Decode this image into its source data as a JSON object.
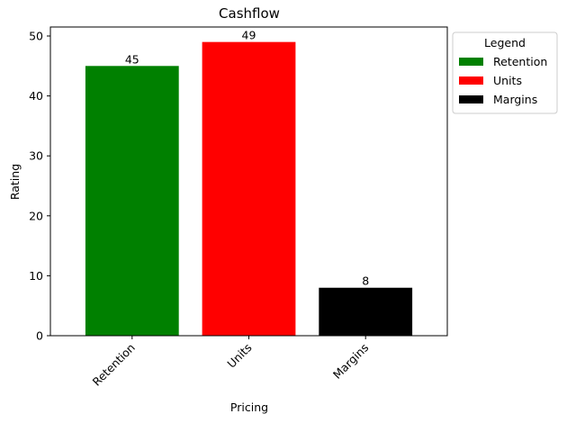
{
  "chart_data": {
    "type": "bar",
    "title": "Cashflow",
    "xlabel": "Pricing",
    "ylabel": "Rating",
    "categories": [
      "Retention",
      "Units",
      "Margins"
    ],
    "values": [
      45,
      49,
      8
    ],
    "colors": [
      "#008000",
      "#ff0000",
      "#000000"
    ],
    "ylim": [
      0,
      51.5
    ],
    "yticks": [
      0,
      10,
      20,
      30,
      40,
      50
    ],
    "grid": false,
    "legend": {
      "title": "Legend",
      "placement": "outside-top-right",
      "entries": [
        "Retention",
        "Units",
        "Margins"
      ]
    }
  }
}
